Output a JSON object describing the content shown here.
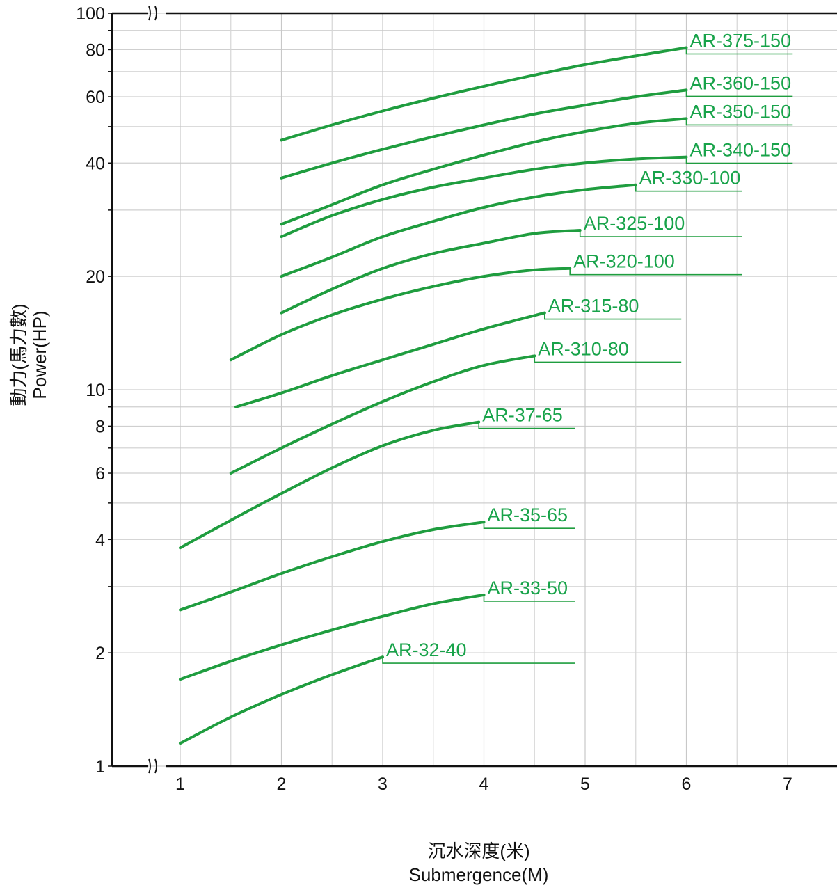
{
  "chart_data": {
    "type": "line",
    "xlabel_cn": "沉水深度(米)",
    "xlabel": "Submergence(M)",
    "ylabel_cn": "動力(馬力數)",
    "ylabel": "Power(HP)",
    "xlim": [
      0.3,
      7.5
    ],
    "ylim": [
      1,
      100
    ],
    "y_scale": "log",
    "grid": true,
    "axis_break": true,
    "x_ticks": [
      1,
      2,
      3,
      4,
      5,
      6,
      7
    ],
    "x_tick_labels": [
      "1",
      "2",
      "3",
      "4",
      "5",
      "6",
      "7"
    ],
    "y_ticks": [
      1,
      2,
      4,
      6,
      8,
      10,
      20,
      40,
      60,
      80,
      100
    ],
    "y_tick_labels": [
      "1",
      "2",
      "4",
      "6",
      "8",
      "10",
      "20",
      "40",
      "60",
      "80",
      "100"
    ],
    "line_color": "#1f9d3f",
    "label_color": "#18a34a",
    "series": [
      {
        "name": "AR-375-150",
        "x": [
          2,
          2.5,
          3,
          3.5,
          4,
          4.5,
          5,
          5.5,
          6
        ],
        "y": [
          46,
          50.5,
          55,
          59.5,
          64,
          68.5,
          73,
          77,
          81
        ],
        "label_x": 6.0,
        "leader_end": 7.05
      },
      {
        "name": "AR-360-150",
        "x": [
          2,
          2.5,
          3,
          3.5,
          4,
          4.5,
          5,
          5.5,
          6
        ],
        "y": [
          36.5,
          40,
          43.5,
          47,
          50.5,
          54,
          57,
          60,
          62.5
        ],
        "label_x": 6.0,
        "leader_end": 7.05
      },
      {
        "name": "AR-350-150",
        "x": [
          2,
          2.5,
          3,
          3.5,
          4,
          4.5,
          5,
          5.5,
          6
        ],
        "y": [
          27.5,
          31,
          35,
          38.5,
          42,
          45.5,
          48.5,
          51,
          52.5
        ],
        "label_x": 6.0,
        "leader_end": 7.05
      },
      {
        "name": "AR-340-150",
        "x": [
          2,
          2.5,
          3,
          3.5,
          4,
          4.5,
          5,
          5.5,
          6
        ],
        "y": [
          25.5,
          29,
          32,
          34.5,
          36.5,
          38.5,
          40,
          41,
          41.5
        ],
        "label_x": 6.0,
        "leader_end": 7.05
      },
      {
        "name": "AR-330-100",
        "x": [
          2,
          2.5,
          3,
          3.5,
          4,
          4.5,
          5,
          5.5
        ],
        "y": [
          20,
          22.5,
          25.5,
          28,
          30.5,
          32.5,
          34,
          35
        ],
        "label_x": 5.5,
        "leader_end": 6.55
      },
      {
        "name": "AR-325-100",
        "x": [
          2,
          2.5,
          3,
          3.5,
          4,
          4.5,
          4.95
        ],
        "y": [
          16,
          18.5,
          21,
          23,
          24.5,
          26,
          26.5
        ],
        "label_x": 4.95,
        "leader_end": 6.55
      },
      {
        "name": "AR-320-100",
        "x": [
          1.5,
          2,
          2.5,
          3,
          3.5,
          4,
          4.5,
          4.85
        ],
        "y": [
          12,
          14,
          15.8,
          17.4,
          18.8,
          20,
          20.8,
          21
        ],
        "label_x": 4.85,
        "leader_end": 6.55
      },
      {
        "name": "AR-315-80",
        "x": [
          1.55,
          2,
          2.5,
          3,
          3.5,
          4,
          4.6
        ],
        "y": [
          9,
          9.8,
          10.9,
          12,
          13.2,
          14.5,
          16
        ],
        "label_x": 4.6,
        "leader_end": 5.95
      },
      {
        "name": "AR-310-80",
        "x": [
          1.5,
          2,
          2.5,
          3,
          3.5,
          4,
          4.5
        ],
        "y": [
          6,
          7,
          8.1,
          9.3,
          10.5,
          11.6,
          12.3
        ],
        "label_x": 4.5,
        "leader_end": 5.95
      },
      {
        "name": "AR-37-65",
        "x": [
          1,
          1.5,
          2,
          2.5,
          3,
          3.5,
          3.95
        ],
        "y": [
          3.8,
          4.5,
          5.3,
          6.2,
          7.1,
          7.8,
          8.2
        ],
        "label_x": 3.95,
        "leader_end": 4.9
      },
      {
        "name": "AR-35-65",
        "x": [
          1,
          1.5,
          2,
          2.5,
          3,
          3.5,
          4
        ],
        "y": [
          2.6,
          2.9,
          3.25,
          3.6,
          3.95,
          4.25,
          4.45
        ],
        "label_x": 4.0,
        "leader_end": 4.9
      },
      {
        "name": "AR-33-50",
        "x": [
          1,
          1.5,
          2,
          2.5,
          3,
          3.5,
          4
        ],
        "y": [
          1.7,
          1.9,
          2.1,
          2.3,
          2.5,
          2.7,
          2.85
        ],
        "label_x": 4.0,
        "leader_end": 4.9
      },
      {
        "name": "AR-32-40",
        "x": [
          1,
          1.5,
          2,
          2.5,
          3
        ],
        "y": [
          1.15,
          1.35,
          1.55,
          1.75,
          1.95
        ],
        "label_x": 3.0,
        "leader_end": 4.9
      }
    ]
  }
}
